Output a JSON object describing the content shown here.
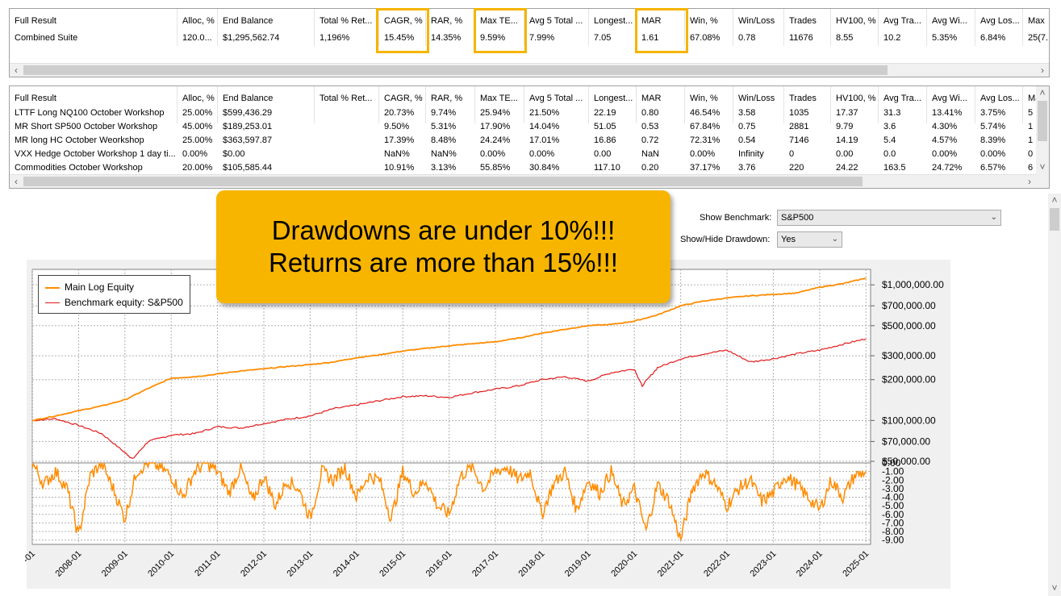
{
  "columns": [
    "Full Result",
    "Alloc, %",
    "End Balance",
    "Total % Ret...",
    "CAGR, %",
    "RAR, %",
    "Max TE...",
    "Avg 5 Total ...",
    "Longest...",
    "MAR",
    "Win, %",
    "Win/Loss",
    "Trades",
    "HV100, %",
    "Avg Tra...",
    "Avg Wi...",
    "Avg Los...",
    "Max"
  ],
  "combined_table": {
    "rows": [
      [
        "Combined Suite",
        "120.0...",
        "$1,295,562.74",
        "1,196%",
        "15.45%",
        "14.35%",
        "9.59%",
        "7.99%",
        "7.05",
        "1.61",
        "67.08%",
        "0.78",
        "11676",
        "8.55",
        "10.2",
        "5.35%",
        "6.84%",
        "25(7..."
      ]
    ]
  },
  "systems_table": {
    "rows": [
      [
        "LTTF Long NQ100 October Workshop",
        "25.00%",
        "$599,436.29",
        "",
        "20.73%",
        "9.74%",
        "25.94%",
        "21.50%",
        "22.19",
        "0.80",
        "46.54%",
        "3.58",
        "1035",
        "17.37",
        "31.3",
        "13.41%",
        "3.75%",
        "5"
      ],
      [
        "MR Short SP500 October Workshop",
        "45.00%",
        "$189,253.01",
        "",
        "9.50%",
        "5.31%",
        "17.90%",
        "14.04%",
        "51.05",
        "0.53",
        "67.84%",
        "0.75",
        "2881",
        "9.79",
        "3.6",
        "4.30%",
        "5.74%",
        "1"
      ],
      [
        "MR long HC October Weorkshop",
        "25.00%",
        "$363,597.87",
        "",
        "17.39%",
        "8.48%",
        "24.24%",
        "17.01%",
        "16.86",
        "0.72",
        "72.31%",
        "0.54",
        "7146",
        "14.19",
        "5.4",
        "4.57%",
        "8.39%",
        "1"
      ],
      [
        "VXX Hedge October Workshop 1 day ti...",
        "0.00%",
        "$0.00",
        "",
        "NaN%",
        "NaN%",
        "0.00%",
        "0.00%",
        "0.00",
        "NaN",
        "0.00%",
        "Infinity",
        "0",
        "0.00",
        "0.0",
        "0.00%",
        "0.00%",
        "0"
      ],
      [
        "Commodities October Workshop",
        "20.00%",
        "$105,585.44",
        "",
        "10.91%",
        "3.13%",
        "55.85%",
        "30.84%",
        "117.10",
        "0.20",
        "37.17%",
        "3.76",
        "220",
        "24.22",
        "163.5",
        "24.72%",
        "6.57%",
        "6"
      ]
    ]
  },
  "callout": {
    "line1": "Drawdowns are under 10%!!!",
    "line2": "Returns are more than 15%!!!"
  },
  "controls": {
    "benchmark_label": "Show Benchmark:",
    "benchmark_value": "S&P500",
    "drawdown_label": "Show/Hide Drawdown:",
    "drawdown_value": "Yes"
  },
  "scroll_icons": {
    "left": "chevron-left-icon",
    "right": "chevron-right-icon",
    "up": "chevron-up-icon",
    "down": "chevron-down-icon"
  },
  "colors": {
    "equity": "#ff8c00",
    "benchmark": "#e31a1c",
    "drawdown": "#ff8c00",
    "highlight": "#f5b400",
    "callout": "#f7b500"
  },
  "chart_data": {
    "type": "line",
    "legend": [
      "Main Log Equity",
      "Benchmark equity: S&P500"
    ],
    "legend_placement": "top-left",
    "grid": true,
    "x_ticks": [
      "-01",
      "2008-01",
      "2009-01",
      "2010-01",
      "2011-01",
      "2012-01",
      "2013-01",
      "2014-01",
      "2015-01",
      "2016-01",
      "2017-01",
      "2018-01",
      "2019-01",
      "2020-01",
      "2021-01",
      "2022-01",
      "2023-01",
      "2024-01",
      "2025-01"
    ],
    "equity": {
      "y_scale": "log",
      "y_ticks": [
        "$1,000,000.00",
        "$700,000.00",
        "$500,000.00",
        "$300,000.00",
        "$200,000.00",
        "$100,000.00",
        "$70,000.00",
        "$50,000.00"
      ],
      "y_tick_values": [
        1000000,
        700000,
        500000,
        300000,
        200000,
        100000,
        70000,
        50000
      ],
      "ylim": [
        50000,
        1300000
      ],
      "series": [
        {
          "name": "Main Log Equity",
          "x": [
            "2007-01",
            "2007-07",
            "2008-01",
            "2008-07",
            "2009-01",
            "2009-07",
            "2010-01",
            "2010-07",
            "2011-01",
            "2011-07",
            "2012-01",
            "2012-07",
            "2013-01",
            "2013-07",
            "2014-01",
            "2014-07",
            "2015-01",
            "2015-07",
            "2016-01",
            "2016-07",
            "2017-01",
            "2017-07",
            "2018-01",
            "2018-07",
            "2019-01",
            "2019-07",
            "2020-01",
            "2020-07",
            "2021-01",
            "2021-07",
            "2022-01",
            "2022-07",
            "2023-01",
            "2023-07",
            "2024-01",
            "2024-07",
            "2025-01"
          ],
          "values": [
            100000,
            108000,
            118000,
            128000,
            142000,
            172000,
            205000,
            210000,
            220000,
            232000,
            240000,
            250000,
            258000,
            270000,
            290000,
            305000,
            325000,
            340000,
            355000,
            368000,
            380000,
            405000,
            440000,
            470000,
            500000,
            510000,
            540000,
            600000,
            700000,
            760000,
            800000,
            830000,
            850000,
            870000,
            960000,
            1020000,
            1120000
          ]
        },
        {
          "name": "Benchmark equity: S&P500",
          "x": [
            "2007-01",
            "2007-07",
            "2008-01",
            "2008-07",
            "2009-01",
            "2009-03",
            "2009-07",
            "2010-01",
            "2010-07",
            "2011-01",
            "2011-07",
            "2012-01",
            "2012-07",
            "2013-01",
            "2013-07",
            "2014-01",
            "2014-07",
            "2015-01",
            "2015-07",
            "2016-01",
            "2016-07",
            "2017-01",
            "2017-07",
            "2018-01",
            "2018-07",
            "2019-01",
            "2019-07",
            "2020-01",
            "2020-03",
            "2020-07",
            "2021-01",
            "2021-07",
            "2022-01",
            "2022-07",
            "2023-01",
            "2023-07",
            "2024-01",
            "2024-07",
            "2025-01"
          ],
          "values": [
            100000,
            103000,
            92000,
            80000,
            58000,
            52000,
            70000,
            78000,
            80000,
            90000,
            88000,
            95000,
            102000,
            108000,
            122000,
            130000,
            140000,
            150000,
            152000,
            148000,
            160000,
            170000,
            180000,
            200000,
            210000,
            195000,
            225000,
            240000,
            180000,
            245000,
            285000,
            310000,
            330000,
            270000,
            285000,
            310000,
            330000,
            365000,
            400000
          ]
        }
      ]
    },
    "drawdown": {
      "y_ticks": [
        "0.00",
        "-1.00",
        "-2.00",
        "-3.00",
        "-4.00",
        "-5.00",
        "-6.00",
        "-7.00",
        "-8.00",
        "-9.00"
      ],
      "ylim": [
        -9.5,
        0
      ],
      "series": [
        {
          "name": "Drawdown",
          "x": [
            "2007-01",
            "2007-04",
            "2007-07",
            "2007-10",
            "2008-01",
            "2008-04",
            "2008-07",
            "2008-10",
            "2009-01",
            "2009-04",
            "2009-07",
            "2009-10",
            "2010-01",
            "2010-04",
            "2010-07",
            "2010-10",
            "2011-01",
            "2011-04",
            "2011-07",
            "2011-10",
            "2012-01",
            "2012-04",
            "2012-07",
            "2012-10",
            "2013-01",
            "2013-04",
            "2013-07",
            "2013-10",
            "2014-01",
            "2014-04",
            "2014-07",
            "2014-10",
            "2015-01",
            "2015-04",
            "2015-07",
            "2015-10",
            "2016-01",
            "2016-04",
            "2016-07",
            "2016-10",
            "2017-01",
            "2017-04",
            "2017-07",
            "2017-10",
            "2018-01",
            "2018-04",
            "2018-07",
            "2018-10",
            "2019-01",
            "2019-04",
            "2019-07",
            "2019-10",
            "2020-01",
            "2020-04",
            "2020-07",
            "2020-10",
            "2021-01",
            "2021-04",
            "2021-07",
            "2021-10",
            "2022-01",
            "2022-04",
            "2022-07",
            "2022-10",
            "2023-01",
            "2023-04",
            "2023-07",
            "2023-10",
            "2024-01",
            "2024-04",
            "2024-07",
            "2024-10",
            "2025-01"
          ],
          "values": [
            0,
            -2.5,
            -1.0,
            -3.0,
            -8.5,
            -1.5,
            0,
            -3.0,
            -6.5,
            -1.0,
            0,
            -0.5,
            -1.5,
            -4.0,
            -1.0,
            0,
            -1.0,
            -3.5,
            -0.5,
            -4.5,
            -1.5,
            -5.0,
            -2.0,
            -3.0,
            -6.5,
            -1.0,
            -2.0,
            -0.5,
            -4.0,
            -1.5,
            -2.0,
            -6.5,
            -1.0,
            -3.5,
            -2.0,
            -5.0,
            -6.0,
            -1.5,
            -0.5,
            -3.0,
            -1.0,
            -0.5,
            -2.0,
            -1.0,
            -6.0,
            -2.5,
            -1.0,
            -5.5,
            -2.0,
            -3.5,
            -1.0,
            -5.0,
            -3.0,
            -8.0,
            -2.5,
            -4.5,
            -9.0,
            -3.0,
            -1.0,
            -2.5,
            -5.0,
            -3.0,
            -2.0,
            -4.5,
            -3.5,
            -1.5,
            -2.5,
            -4.0,
            -5.5,
            -2.0,
            -4.0,
            -1.5,
            -1.0
          ]
        }
      ]
    }
  }
}
